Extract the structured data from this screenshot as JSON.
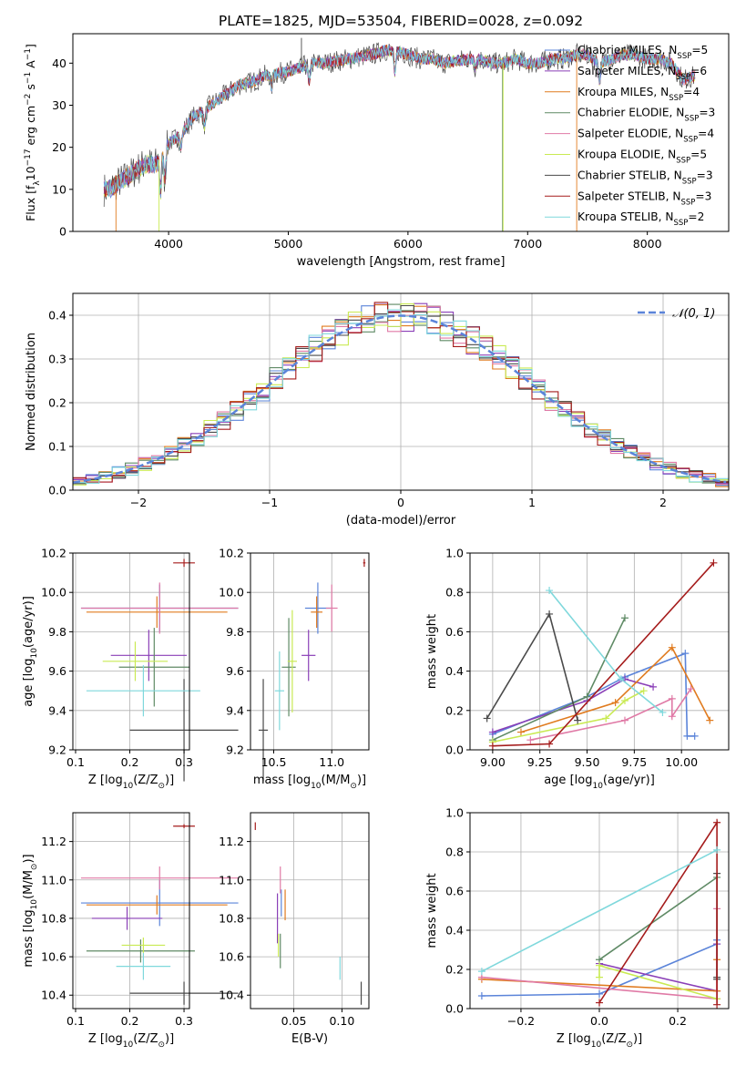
{
  "figure_title": "PLATE=1825, MJD=53504, FIBERID=0028, z=0.092",
  "colors": {
    "chabrier_miles": "#5b84d9",
    "salpeter_miles": "#8a3fb7",
    "kroupa_miles": "#e07b1f",
    "chabrier_elodie": "#5f8a65",
    "salpeter_elodie": "#e07aa6",
    "kroupa_elodie": "#c9ea53",
    "chabrier_stelib": "#4a4a4a",
    "salpeter_stelib": "#a51c1c",
    "kroupa_stelib": "#7fd8dc",
    "normal": "#5b84d9"
  },
  "chart_data": [
    {
      "id": "spectrum",
      "type": "line",
      "title": "PLATE=1825, MJD=53504, FIBERID=0028, z=0.092",
      "xlabel": "wavelength [Angstrom, rest frame]",
      "ylabel": "Flux [f_λ10^-17 erg cm^-2 s^-1 A^-1]",
      "xlim": [
        3200,
        8680
      ],
      "ylim": [
        0,
        47
      ],
      "xticks": [
        "4000",
        "5000",
        "6000",
        "7000",
        "8000"
      ],
      "yticks": [
        "0",
        "10",
        "20",
        "30",
        "40"
      ],
      "grid": false,
      "legend_position": "top-right",
      "legend": [
        {
          "label": "Chabrier MILES, N",
          "sub": "SSP",
          "suffix": "=5",
          "color": "chabrier_miles"
        },
        {
          "label": "Salpeter MILES, N",
          "sub": "SSP",
          "suffix": "=6",
          "color": "salpeter_miles"
        },
        {
          "label": "Kroupa MILES, N",
          "sub": "SSP",
          "suffix": "=4",
          "color": "kroupa_miles"
        },
        {
          "label": "Chabrier ELODIE, N",
          "sub": "SSP",
          "suffix": "=3",
          "color": "chabrier_elodie"
        },
        {
          "label": "Salpeter ELODIE, N",
          "sub": "SSP",
          "suffix": "=4",
          "color": "salpeter_elodie"
        },
        {
          "label": "Kroupa ELODIE, N",
          "sub": "SSP",
          "suffix": "=5",
          "color": "kroupa_elodie"
        },
        {
          "label": "Chabrier STELIB, N",
          "sub": "SSP",
          "suffix": "=3",
          "color": "chabrier_stelib"
        },
        {
          "label": "Salpeter STELIB, N",
          "sub": "SSP",
          "suffix": "=3",
          "color": "salpeter_stelib"
        },
        {
          "label": "Kroupa STELIB, N",
          "sub": "SSP",
          "suffix": "=2",
          "color": "kroupa_stelib"
        }
      ],
      "continuum": [
        [
          3500,
          10
        ],
        [
          3600,
          12
        ],
        [
          3700,
          14
        ],
        [
          3800,
          16
        ],
        [
          3900,
          16
        ],
        [
          4000,
          21
        ],
        [
          4100,
          23
        ],
        [
          4200,
          27
        ],
        [
          4300,
          29
        ],
        [
          4400,
          31
        ],
        [
          4500,
          33
        ],
        [
          4600,
          35
        ],
        [
          4700,
          35.5
        ],
        [
          4800,
          37
        ],
        [
          4900,
          37.5
        ],
        [
          5000,
          38
        ],
        [
          5100,
          39
        ],
        [
          5200,
          40
        ],
        [
          5300,
          40
        ],
        [
          5400,
          40.5
        ],
        [
          5500,
          41
        ],
        [
          5600,
          41.5
        ],
        [
          5700,
          42
        ],
        [
          5800,
          43
        ],
        [
          5900,
          43
        ],
        [
          6000,
          42
        ],
        [
          6100,
          41
        ],
        [
          6200,
          41
        ],
        [
          6300,
          40
        ],
        [
          6400,
          40.5
        ],
        [
          6500,
          41
        ],
        [
          6600,
          41
        ],
        [
          6700,
          40
        ],
        [
          6800,
          40
        ],
        [
          6900,
          41
        ],
        [
          7000,
          40
        ],
        [
          7100,
          40
        ],
        [
          7200,
          41
        ],
        [
          7300,
          41
        ],
        [
          7400,
          42
        ],
        [
          7500,
          42
        ],
        [
          7600,
          40
        ],
        [
          7700,
          41
        ],
        [
          7800,
          42
        ],
        [
          7900,
          42
        ],
        [
          8000,
          41
        ],
        [
          8100,
          41
        ],
        [
          8200,
          40
        ],
        [
          8300,
          36
        ],
        [
          8400,
          37
        ]
      ],
      "absorption_lines": [
        [
          3933,
          8
        ],
        [
          3968,
          7
        ],
        [
          4102,
          3
        ],
        [
          4300,
          4
        ],
        [
          4861,
          3
        ],
        [
          5175,
          4
        ],
        [
          5890,
          5
        ],
        [
          6563,
          2
        ],
        [
          7600,
          4
        ]
      ],
      "spikes": [
        {
          "x": 3560,
          "y": 0,
          "color": "kroupa_miles"
        },
        {
          "x": 3920,
          "y": 0,
          "color": "kroupa_elodie"
        },
        {
          "x": 5110,
          "y": 46,
          "color": "chabrier_stelib"
        },
        {
          "x": 6790,
          "y": 0,
          "color": "chabrier_elodie"
        },
        {
          "x": 6795,
          "y": 0,
          "color": "kroupa_elodie"
        },
        {
          "x": 7410,
          "y": 0,
          "color": "kroupa_miles"
        }
      ]
    },
    {
      "id": "residuals",
      "type": "histogram",
      "xlabel": "(data-model)/error",
      "ylabel": "Normed distribution",
      "xlim": [
        -2.5,
        2.5
      ],
      "ylim": [
        0,
        0.45
      ],
      "xticks": [
        "−2",
        "−1",
        "0",
        "1",
        "2"
      ],
      "yticks": [
        "0.0",
        "0.1",
        "0.2",
        "0.3",
        "0.4"
      ],
      "grid": true,
      "legend_position": "top-right",
      "legend": [
        {
          "label": "𝒩(0, 1)",
          "style": "dashed",
          "color": "normal"
        }
      ],
      "bin_width": 0.1,
      "series_colors": [
        "chabrier_miles",
        "salpeter_miles",
        "kroupa_miles",
        "chabrier_elodie",
        "salpeter_elodie",
        "kroupa_elodie",
        "chabrier_stelib",
        "salpeter_stelib",
        "kroupa_stelib"
      ]
    },
    {
      "id": "age_vs_Z",
      "type": "errorbar",
      "xlabel": "Z [log10(Z/Z⊙)]",
      "ylabel": "age  [log10(age/yr)]",
      "xlim": [
        0.095,
        0.31
      ],
      "ylim": [
        9.2,
        10.2
      ],
      "xticks": [
        "0.1",
        "0.2",
        "0.3"
      ],
      "yticks": [
        "9.2",
        "9.4",
        "9.6",
        "9.8",
        "10.0",
        "10.2"
      ],
      "grid": true,
      "points": [
        {
          "color": "chabrier_miles",
          "x": 0.255,
          "xerr": 0.145,
          "y": 9.92,
          "yerr": 0.12
        },
        {
          "color": "salpeter_miles",
          "x": 0.235,
          "xerr": 0.07,
          "y": 9.68,
          "yerr": 0.13
        },
        {
          "color": "kroupa_miles",
          "x": 0.25,
          "xerr": 0.13,
          "y": 9.9,
          "yerr": 0.08
        },
        {
          "color": "chabrier_elodie",
          "x": 0.245,
          "xerr": 0.065,
          "y": 9.62,
          "yerr": 0.2
        },
        {
          "color": "salpeter_elodie",
          "x": 0.255,
          "xerr": 0.145,
          "y": 9.92,
          "yerr": 0.13
        },
        {
          "color": "kroupa_elodie",
          "x": 0.21,
          "xerr": 0.06,
          "y": 9.65,
          "yerr": 0.1
        },
        {
          "color": "chabrier_stelib",
          "x": 0.3,
          "xerr": 0.1,
          "y": 9.3,
          "yerr": 0.26
        },
        {
          "color": "salpeter_stelib",
          "x": 0.3,
          "xerr": 0.02,
          "y": 10.15,
          "yerr": 0.02
        },
        {
          "color": "kroupa_stelib",
          "x": 0.225,
          "xerr": 0.105,
          "y": 9.5,
          "yerr": 0.13
        }
      ]
    },
    {
      "id": "age_vs_mass",
      "type": "errorbar",
      "xlabel": "mass [log10(M/M⊙)]",
      "ylabel": "",
      "xlim": [
        10.3,
        11.32
      ],
      "ylim": [
        9.2,
        10.2
      ],
      "xticks": [
        "10.5",
        "11.0"
      ],
      "yticks": [
        "9.2",
        "9.4",
        "9.6",
        "9.8",
        "10.0",
        "10.2"
      ],
      "grid": true,
      "points": [
        {
          "color": "chabrier_miles",
          "x": 10.88,
          "xerr": 0.11,
          "y": 9.92,
          "yerr": 0.13
        },
        {
          "color": "salpeter_miles",
          "x": 10.8,
          "xerr": 0.06,
          "y": 9.68,
          "yerr": 0.13
        },
        {
          "color": "kroupa_miles",
          "x": 10.87,
          "xerr": 0.05,
          "y": 9.9,
          "yerr": 0.08
        },
        {
          "color": "chabrier_elodie",
          "x": 10.63,
          "xerr": 0.06,
          "y": 9.62,
          "yerr": 0.25
        },
        {
          "color": "salpeter_elodie",
          "x": 11.0,
          "xerr": 0.05,
          "y": 9.92,
          "yerr": 0.12
        },
        {
          "color": "kroupa_elodie",
          "x": 10.66,
          "xerr": 0.04,
          "y": 9.65,
          "yerr": 0.26
        },
        {
          "color": "chabrier_stelib",
          "x": 10.41,
          "xerr": 0.04,
          "y": 9.3,
          "yerr": 0.26
        },
        {
          "color": "salpeter_stelib",
          "x": 11.28,
          "xerr": 0.01,
          "y": 10.15,
          "yerr": 0.02
        },
        {
          "color": "kroupa_stelib",
          "x": 10.55,
          "xerr": 0.04,
          "y": 9.5,
          "yerr": 0.2
        }
      ]
    },
    {
      "id": "mass_weight_vs_age",
      "type": "line",
      "xlabel": "age  [log10(age/yr)]",
      "ylabel": "mass weight",
      "xlim": [
        8.88,
        10.25
      ],
      "ylim": [
        0,
        1
      ],
      "xticks": [
        "9.00",
        "9.25",
        "9.50",
        "9.75",
        "10.00"
      ],
      "yticks": [
        "0.0",
        "0.2",
        "0.4",
        "0.6",
        "0.8",
        "1.0"
      ],
      "grid": true,
      "series": [
        {
          "color": "chabrier_miles",
          "x": [
            9.0,
            9.5,
            9.7,
            10.02,
            10.03,
            10.07
          ],
          "y": [
            0.08,
            0.27,
            0.37,
            0.49,
            0.07,
            0.07
          ]
        },
        {
          "color": "salpeter_miles",
          "x": [
            9.0,
            9.5,
            9.7,
            9.85
          ],
          "y": [
            0.09,
            0.25,
            0.36,
            0.32
          ]
        },
        {
          "color": "kroupa_miles",
          "x": [
            9.15,
            9.65,
            9.95,
            10.15
          ],
          "y": [
            0.09,
            0.24,
            0.52,
            0.15
          ]
        },
        {
          "color": "chabrier_elodie",
          "x": [
            9.0,
            9.5,
            9.7
          ],
          "y": [
            0.05,
            0.27,
            0.67
          ]
        },
        {
          "color": "salpeter_elodie",
          "x": [
            9.2,
            9.7,
            9.95,
            9.95,
            10.05
          ],
          "y": [
            0.05,
            0.15,
            0.26,
            0.17,
            0.31
          ]
        },
        {
          "color": "kroupa_elodie",
          "x": [
            9.0,
            9.6,
            9.7,
            9.8
          ],
          "y": [
            0.04,
            0.16,
            0.25,
            0.3
          ]
        },
        {
          "color": "chabrier_stelib",
          "x": [
            8.97,
            9.3,
            9.45
          ],
          "y": [
            0.16,
            0.69,
            0.15
          ]
        },
        {
          "color": "salpeter_stelib",
          "x": [
            9.0,
            9.3,
            10.17
          ],
          "y": [
            0.02,
            0.03,
            0.95
          ]
        },
        {
          "color": "kroupa_stelib",
          "x": [
            9.3,
            9.68,
            9.9
          ],
          "y": [
            0.81,
            0.36,
            0.19
          ]
        }
      ]
    },
    {
      "id": "mass_vs_Z",
      "type": "errorbar",
      "xlabel": "Z [log10(Z/Z⊙)]",
      "ylabel": "mass [log10(M/M⊙)]",
      "xlim": [
        0.095,
        0.31
      ],
      "ylim": [
        10.33,
        11.35
      ],
      "xticks": [
        "0.1",
        "0.2",
        "0.3"
      ],
      "yticks": [
        "10.4",
        "10.6",
        "10.8",
        "11.0",
        "11.2"
      ],
      "grid": true,
      "points": [
        {
          "color": "chabrier_miles",
          "x": 0.255,
          "xerr": 0.145,
          "y": 10.88,
          "yerr": 0.12
        },
        {
          "color": "salpeter_miles",
          "x": 0.195,
          "xerr": 0.065,
          "y": 10.8,
          "yerr": 0.06
        },
        {
          "color": "kroupa_miles",
          "x": 0.25,
          "xerr": 0.13,
          "y": 10.87,
          "yerr": 0.05
        },
        {
          "color": "chabrier_elodie",
          "x": 0.22,
          "xerr": 0.1,
          "y": 10.63,
          "yerr": 0.06
        },
        {
          "color": "salpeter_elodie",
          "x": 0.255,
          "xerr": 0.145,
          "y": 11.01,
          "yerr": 0.06
        },
        {
          "color": "kroupa_elodie",
          "x": 0.225,
          "xerr": 0.04,
          "y": 10.66,
          "yerr": 0.04
        },
        {
          "color": "chabrier_stelib",
          "x": 0.3,
          "xerr": 0.1,
          "y": 10.41,
          "yerr": 0.06
        },
        {
          "color": "salpeter_stelib",
          "x": 0.3,
          "xerr": 0.02,
          "y": 11.28,
          "yerr": 0.01
        },
        {
          "color": "kroupa_stelib",
          "x": 0.225,
          "xerr": 0.05,
          "y": 10.55,
          "yerr": 0.07
        }
      ]
    },
    {
      "id": "mass_vs_ebv",
      "type": "errorbar",
      "xlabel": "E(B-V)",
      "ylabel": "",
      "xlim": [
        0.005,
        0.128
      ],
      "ylim": [
        10.33,
        11.35
      ],
      "xticks": [
        "0.05",
        "0.10"
      ],
      "yticks": [
        "10.4",
        "10.6",
        "10.8",
        "11.0",
        "11.2"
      ],
      "grid": true,
      "points": [
        {
          "color": "chabrier_miles",
          "x": 0.037,
          "xerr": 0.0,
          "y": 10.88,
          "yerr": 0.07
        },
        {
          "color": "salpeter_miles",
          "x": 0.033,
          "xerr": 0.0,
          "y": 10.8,
          "yerr": 0.13
        },
        {
          "color": "kroupa_miles",
          "x": 0.041,
          "xerr": 0.0,
          "y": 10.87,
          "yerr": 0.08
        },
        {
          "color": "chabrier_elodie",
          "x": 0.036,
          "xerr": 0.0,
          "y": 10.63,
          "yerr": 0.09
        },
        {
          "color": "salpeter_elodie",
          "x": 0.036,
          "xerr": 0.0,
          "y": 11.0,
          "yerr": 0.07
        },
        {
          "color": "kroupa_elodie",
          "x": 0.034,
          "xerr": 0.0,
          "y": 10.66,
          "yerr": 0.06
        },
        {
          "color": "chabrier_stelib",
          "x": 0.12,
          "xerr": 0.0,
          "y": 10.41,
          "yerr": 0.06
        },
        {
          "color": "salpeter_stelib",
          "x": 0.01,
          "xerr": 0.0,
          "y": 11.28,
          "yerr": 0.02
        },
        {
          "color": "kroupa_stelib",
          "x": 0.098,
          "xerr": 0.0,
          "y": 10.54,
          "yerr": 0.06
        }
      ]
    },
    {
      "id": "mass_weight_vs_Z",
      "type": "line",
      "xlabel": "Z [log10(Z/Z⊙)]",
      "ylabel": "mass weight",
      "xlim": [
        -0.33,
        0.33
      ],
      "ylim": [
        0,
        1
      ],
      "xticks": [
        "−0.2",
        "0.0",
        "0.2"
      ],
      "yticks": [
        "0.0",
        "0.2",
        "0.4",
        "0.6",
        "0.8",
        "1.0"
      ],
      "grid": true,
      "series": [
        {
          "color": "chabrier_miles",
          "x": [
            -0.3,
            0.0,
            0.3,
            0.3
          ],
          "y": [
            0.065,
            0.075,
            0.33,
            0.35
          ]
        },
        {
          "color": "salpeter_miles",
          "x": [
            0.0,
            0.3,
            0.3
          ],
          "y": [
            0.23,
            0.09,
            0.33
          ]
        },
        {
          "color": "kroupa_miles",
          "x": [
            -0.3,
            0.3,
            0.3
          ],
          "y": [
            0.15,
            0.09,
            0.25
          ]
        },
        {
          "color": "chabrier_elodie",
          "x": [
            0.0,
            0.3
          ],
          "y": [
            0.25,
            0.67
          ]
        },
        {
          "color": "salpeter_elodie",
          "x": [
            -0.3,
            0.3,
            0.3
          ],
          "y": [
            0.16,
            0.05,
            0.51
          ]
        },
        {
          "color": "kroupa_elodie",
          "x": [
            0.0,
            0.0,
            0.3
          ],
          "y": [
            0.16,
            0.22,
            0.05
          ]
        },
        {
          "color": "chabrier_stelib",
          "x": [
            0.3,
            0.3,
            0.3
          ],
          "y": [
            0.15,
            0.69,
            0.16
          ]
        },
        {
          "color": "salpeter_stelib",
          "x": [
            0.0,
            0.3,
            0.3
          ],
          "y": [
            0.03,
            0.95,
            0.02
          ]
        },
        {
          "color": "kroupa_stelib",
          "x": [
            -0.3,
            0.3
          ],
          "y": [
            0.19,
            0.81
          ]
        }
      ]
    }
  ]
}
